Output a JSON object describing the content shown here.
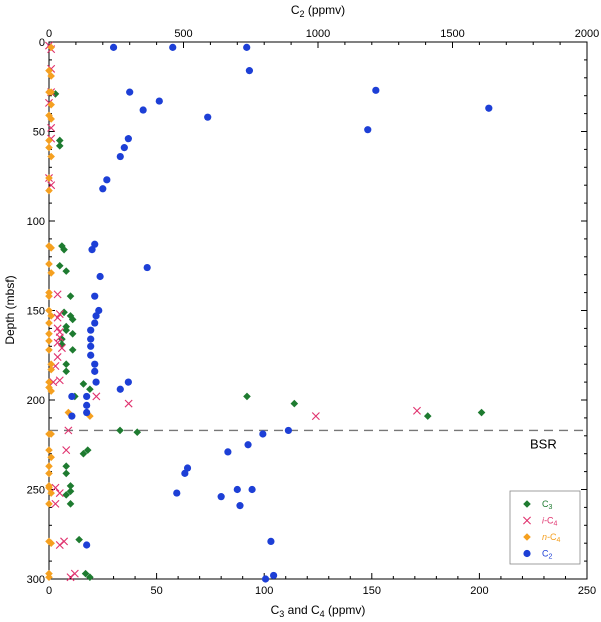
{
  "chart_data": {
    "type": "scatter",
    "top_axis": {
      "label": "C",
      "label_sub": "2",
      "label_unit": " (ppmv)",
      "range": [
        0,
        2000
      ],
      "ticks": [
        "0",
        "500",
        "1000",
        "1500",
        "2000"
      ],
      "tick_values": [
        0,
        500,
        1000,
        1500,
        2000
      ]
    },
    "bottom_axis": {
      "label": "C",
      "label_sub": "3",
      "label_mid": " and C",
      "label_sub2": "4",
      "label_unit": " (ppmv)",
      "range": [
        0,
        250
      ],
      "ticks": [
        "0",
        "50",
        "100",
        "150",
        "200",
        "250"
      ],
      "tick_values": [
        0,
        50,
        100,
        150,
        200,
        250
      ]
    },
    "y_axis": {
      "label": "Depth (mbsf)",
      "range": [
        0,
        300
      ],
      "inverted": true,
      "ticks": [
        "0",
        "50",
        "100",
        "150",
        "200",
        "250",
        "300"
      ],
      "tick_values": [
        0,
        50,
        100,
        150,
        200,
        250,
        300
      ]
    },
    "reference_line": {
      "label": "BSR",
      "depth": 217
    },
    "series": [
      {
        "name": "C3",
        "name_main": "C",
        "name_sub": "3",
        "name_italic_prefix": "",
        "marker": "diamond",
        "color": "#1e7b30",
        "axis": "bottom",
        "points": [
          [
            3,
            29
          ],
          [
            5,
            55
          ],
          [
            5,
            58
          ],
          [
            6,
            114
          ],
          [
            7,
            116
          ],
          [
            5,
            125
          ],
          [
            8,
            128
          ],
          [
            10,
            142
          ],
          [
            7,
            151
          ],
          [
            10,
            153
          ],
          [
            11,
            155
          ],
          [
            8,
            159
          ],
          [
            8,
            161
          ],
          [
            11,
            163
          ],
          [
            6,
            166
          ],
          [
            6,
            169
          ],
          [
            11,
            172
          ],
          [
            8,
            180
          ],
          [
            8,
            184
          ],
          [
            16,
            191
          ],
          [
            19,
            194
          ],
          [
            12,
            198
          ],
          [
            92,
            198
          ],
          [
            114,
            202
          ],
          [
            176,
            209
          ],
          [
            201,
            207
          ],
          [
            33,
            217
          ],
          [
            41,
            218
          ],
          [
            18,
            228
          ],
          [
            16,
            230
          ],
          [
            8,
            237
          ],
          [
            8,
            241
          ],
          [
            10,
            248
          ],
          [
            10,
            251
          ],
          [
            8,
            253
          ],
          [
            10,
            258
          ],
          [
            14,
            278
          ],
          [
            17,
            297
          ],
          [
            19,
            299
          ]
        ]
      },
      {
        "name": "i-C4",
        "name_main": "C",
        "name_sub": "4",
        "name_italic_prefix": "i-",
        "marker": "x",
        "color": "#e0326e",
        "axis": "bottom",
        "points": [
          [
            0,
            2
          ],
          [
            1,
            4
          ],
          [
            1,
            15
          ],
          [
            1,
            28
          ],
          [
            0,
            34
          ],
          [
            1,
            48
          ],
          [
            1,
            54
          ],
          [
            0,
            76
          ],
          [
            1,
            80
          ],
          [
            4,
            141
          ],
          [
            5,
            152
          ],
          [
            4,
            154
          ],
          [
            4,
            160
          ],
          [
            5,
            162
          ],
          [
            5,
            165
          ],
          [
            4,
            168
          ],
          [
            6,
            171
          ],
          [
            4,
            176
          ],
          [
            3,
            181
          ],
          [
            5,
            189
          ],
          [
            2,
            190
          ],
          [
            22,
            198
          ],
          [
            37,
            202
          ],
          [
            124,
            209
          ],
          [
            171,
            206
          ],
          [
            9,
            217
          ],
          [
            8,
            228
          ],
          [
            3,
            249
          ],
          [
            5,
            252
          ],
          [
            3,
            258
          ],
          [
            7,
            279
          ],
          [
            5,
            281
          ],
          [
            12,
            297
          ],
          [
            10,
            299
          ]
        ]
      },
      {
        "name": "n-C4",
        "name_main": "C",
        "name_sub": "4",
        "name_italic_prefix": "n-",
        "marker": "diamond",
        "color": "#f5a020",
        "axis": "bottom",
        "points": [
          [
            1,
            3
          ],
          [
            0,
            16
          ],
          [
            1,
            19
          ],
          [
            0,
            28
          ],
          [
            1,
            28
          ],
          [
            1,
            35
          ],
          [
            0,
            41
          ],
          [
            1,
            43
          ],
          [
            0,
            55
          ],
          [
            0,
            59
          ],
          [
            1,
            64
          ],
          [
            0,
            76
          ],
          [
            0,
            83
          ],
          [
            0,
            114
          ],
          [
            1,
            115
          ],
          [
            0,
            124
          ],
          [
            1,
            129
          ],
          [
            0,
            140
          ],
          [
            0,
            142
          ],
          [
            0,
            150
          ],
          [
            1,
            153
          ],
          [
            0,
            157
          ],
          [
            0,
            163
          ],
          [
            0,
            167
          ],
          [
            0,
            172
          ],
          [
            1,
            180
          ],
          [
            1,
            183
          ],
          [
            0,
            190
          ],
          [
            0,
            193
          ],
          [
            1,
            195
          ],
          [
            9,
            207
          ],
          [
            19,
            209
          ],
          [
            0,
            219
          ],
          [
            1,
            219
          ],
          [
            0,
            228
          ],
          [
            1,
            232
          ],
          [
            0,
            237
          ],
          [
            0,
            241
          ],
          [
            0,
            248
          ],
          [
            0,
            249
          ],
          [
            1,
            252
          ],
          [
            0,
            258
          ],
          [
            0,
            279
          ],
          [
            1,
            280
          ],
          [
            0,
            297
          ],
          [
            0,
            299
          ]
        ]
      },
      {
        "name": "C2",
        "name_main": "C",
        "name_sub": "2",
        "name_italic_prefix": "",
        "marker": "circle",
        "color": "#1d3fd6",
        "axis": "top",
        "points": [
          [
            240,
            3
          ],
          [
            460,
            3
          ],
          [
            735,
            3
          ],
          [
            745,
            16
          ],
          [
            300,
            28
          ],
          [
            1215,
            27
          ],
          [
            410,
            33
          ],
          [
            350,
            38
          ],
          [
            1635,
            37
          ],
          [
            590,
            42
          ],
          [
            1185,
            49
          ],
          [
            295,
            54
          ],
          [
            280,
            59
          ],
          [
            265,
            64
          ],
          [
            215,
            77
          ],
          [
            200,
            82
          ],
          [
            365,
            126
          ],
          [
            170,
            113
          ],
          [
            160,
            116
          ],
          [
            190,
            131
          ],
          [
            170,
            142
          ],
          [
            185,
            150
          ],
          [
            175,
            153
          ],
          [
            170,
            157
          ],
          [
            155,
            161
          ],
          [
            155,
            166
          ],
          [
            155,
            170
          ],
          [
            155,
            175
          ],
          [
            170,
            180
          ],
          [
            170,
            184
          ],
          [
            175,
            190
          ],
          [
            295,
            190
          ],
          [
            265,
            194
          ],
          [
            85,
            198
          ],
          [
            140,
            198
          ],
          [
            140,
            203
          ],
          [
            140,
            207
          ],
          [
            85,
            209
          ],
          [
            795,
            219
          ],
          [
            890,
            217
          ],
          [
            740,
            225
          ],
          [
            665,
            229
          ],
          [
            755,
            250
          ],
          [
            515,
            238
          ],
          [
            505,
            241
          ],
          [
            475,
            252
          ],
          [
            640,
            254
          ],
          [
            700,
            250
          ],
          [
            710,
            259
          ],
          [
            825,
            279
          ],
          [
            140,
            281
          ],
          [
            805,
            300
          ],
          [
            835,
            298
          ]
        ]
      }
    ]
  }
}
